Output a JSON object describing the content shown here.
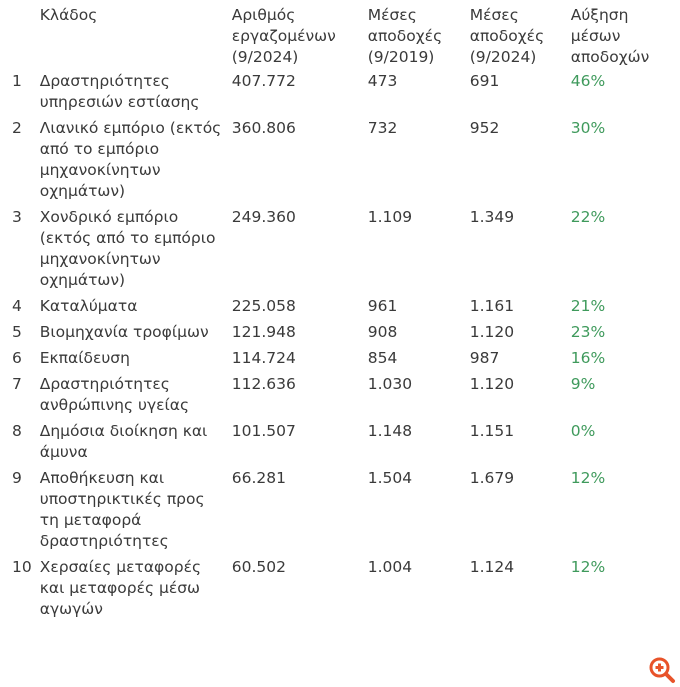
{
  "headers": [
    "",
    "Κλάδος",
    "Αριθμός εργαζομένων (9/2024)",
    "Μέσες αποδοχές (9/2019)",
    "Μέσες αποδοχές (9/2024)",
    "Αύξηση μέσων αποδοχών"
  ],
  "rows": [
    {
      "n": "1",
      "sector": "Δραστηριότητες υπηρεσιών εστίασης",
      "employees": "407.772",
      "pay2019": "473",
      "pay2024": "691",
      "growth": "46%"
    },
    {
      "n": "2",
      "sector": "Λιανικό εμπόριο (εκτός από το εμπόριο μηχανοκίνητων οχημάτων)",
      "employees": "360.806",
      "pay2019": "732",
      "pay2024": "952",
      "growth": "30%"
    },
    {
      "n": "3",
      "sector": "Χονδρικό εμπόριο (εκτός από το εμπόριο μηχανοκίνητων οχημάτων)",
      "employees": "249.360",
      "pay2019": "1.109",
      "pay2024": "1.349",
      "growth": "22%"
    },
    {
      "n": "4",
      "sector": "Καταλύματα",
      "employees": "225.058",
      "pay2019": "961",
      "pay2024": "1.161",
      "growth": "21%"
    },
    {
      "n": "5",
      "sector": "Βιομηχανία τροφίμων",
      "employees": "121.948",
      "pay2019": "908",
      "pay2024": "1.120",
      "growth": "23%"
    },
    {
      "n": "6",
      "sector": "Εκπαίδευση",
      "employees": "114.724",
      "pay2019": "854",
      "pay2024": "987",
      "growth": "16%"
    },
    {
      "n": "7",
      "sector": "Δραστηριότητες ανθρώπινης υγείας",
      "employees": "112.636",
      "pay2019": "1.030",
      "pay2024": "1.120",
      "growth": "9%"
    },
    {
      "n": "8",
      "sector": "Δημόσια διοίκηση και άμυνα",
      "employees": "101.507",
      "pay2019": "1.148",
      "pay2024": "1.151",
      "growth": "0%"
    },
    {
      "n": "9",
      "sector": "Αποθήκευση και υποστηρικτικές προς τη μεταφορά δραστηριότητες",
      "employees": "66.281",
      "pay2019": "1.504",
      "pay2024": "1.679",
      "growth": "12%"
    },
    {
      "n": "10",
      "sector": "Χερσαίες μεταφορές και μεταφορές μέσω αγωγών",
      "employees": "60.502",
      "pay2019": "1.004",
      "pay2024": "1.124",
      "growth": "12%"
    }
  ],
  "colors": {
    "text": "#3a3a3a",
    "growth": "#3f9a5c",
    "zoom_icon": "#e8532a"
  },
  "zoom_icon": "zoom-in-icon"
}
